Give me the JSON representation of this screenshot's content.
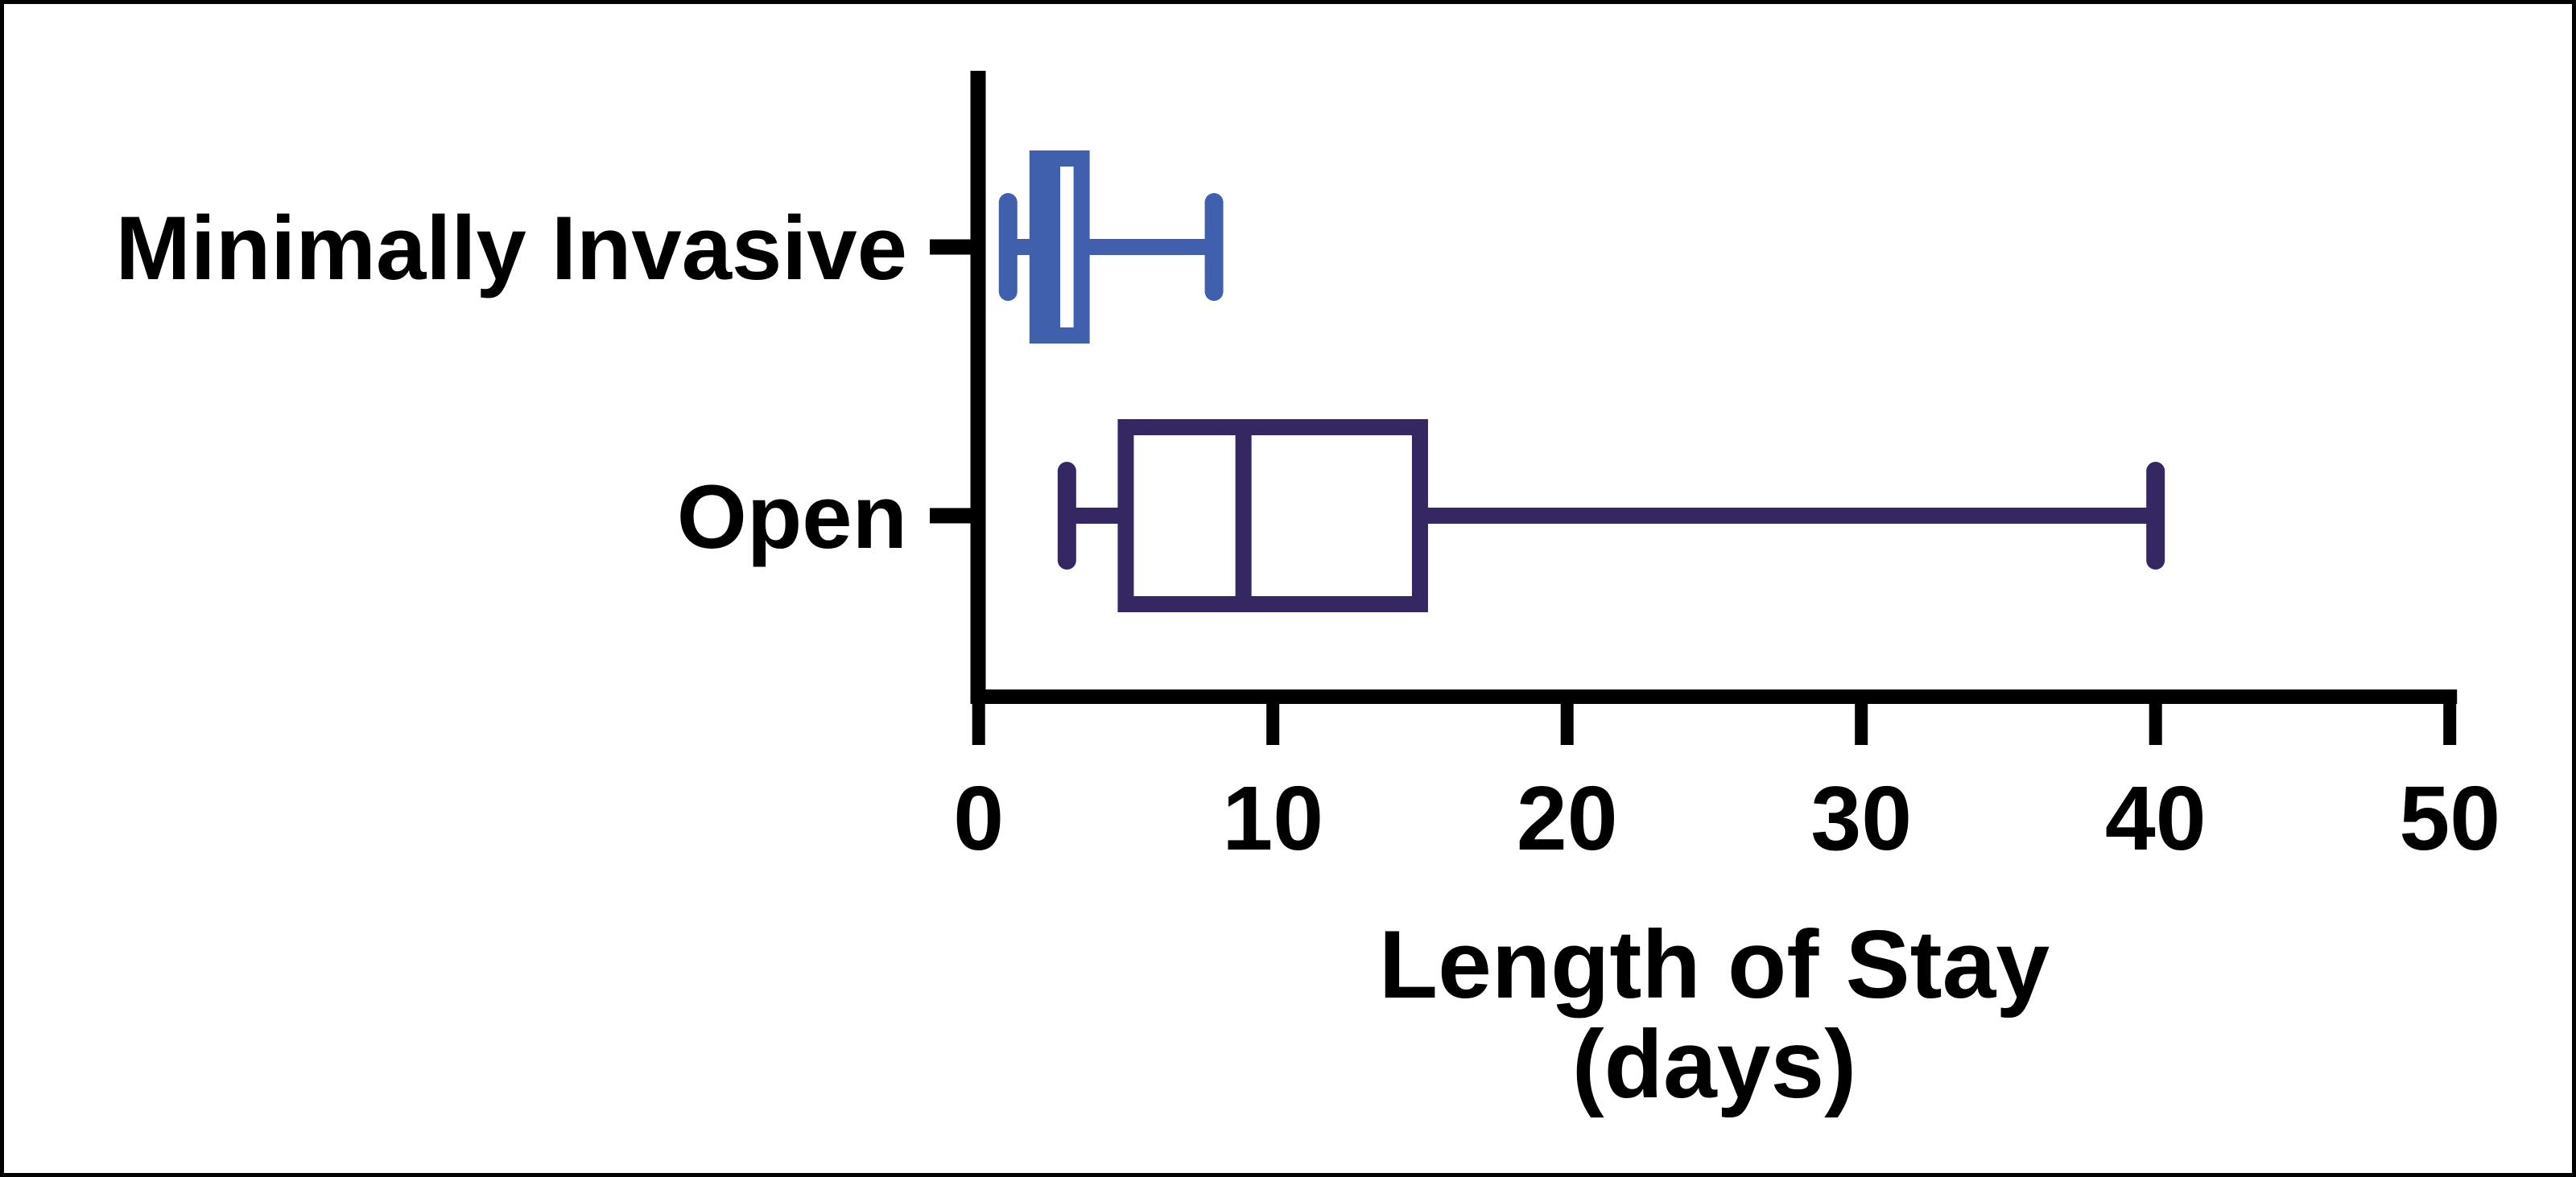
{
  "figure": {
    "background_color": "#ffffff",
    "frame_border_color": "#000000"
  },
  "chart_data": {
    "type": "boxplot",
    "orientation": "horizontal",
    "title": "",
    "xlabel_line1": "Length of Stay",
    "xlabel_line2": "(days)",
    "xlim": [
      0,
      50
    ],
    "x_ticks": [
      0,
      10,
      20,
      30,
      40,
      50
    ],
    "grid": false,
    "legend_position": "none",
    "axis_color": "#000000",
    "text_color": "#000000",
    "categories": [
      "Minimally Invasive",
      "Open"
    ],
    "series": [
      {
        "name": "Minimally Invasive",
        "color": "#4060AE",
        "min": 1,
        "q1": 2,
        "median": 2.5,
        "q3": 3.5,
        "max": 8
      },
      {
        "name": "Open",
        "color": "#342762",
        "min": 3,
        "q1": 5,
        "median": 9,
        "q3": 15,
        "max": 40
      }
    ]
  }
}
